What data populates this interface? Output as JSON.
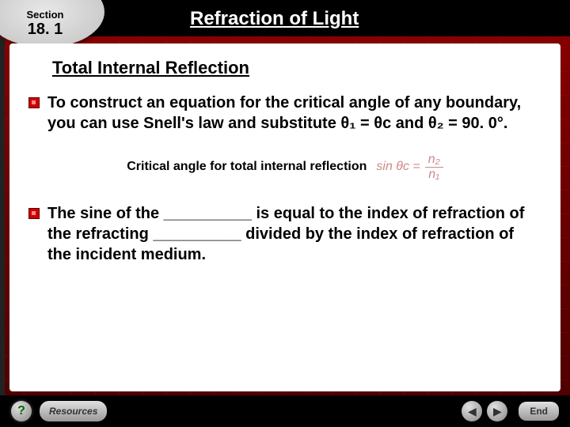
{
  "colors": {
    "slide_bg_top": "#8a0000",
    "slide_bg_bottom": "#4a0000",
    "header_bg": "#000000",
    "content_bg": "#ffffff",
    "bullet_color": "#d00000",
    "equation_faded": "#cc8888",
    "footer_bg": "#000000",
    "ellipse_bg": "#e0e0e0",
    "grid_line": "rgba(255,0,0,0.15)"
  },
  "typography": {
    "title_fontsize": 24,
    "subhead_fontsize": 22,
    "body_fontsize": 20,
    "eqlabel_fontsize": 16,
    "section_label_fontsize": 13,
    "section_number_fontsize": 20,
    "footer_fontsize": 12
  },
  "header": {
    "section_label": "Section",
    "section_number": "18. 1",
    "title": "Refraction of Light"
  },
  "content": {
    "subheading": "Total Internal Reflection",
    "bullet1": "To construct an equation for the critical angle of any boundary, you can use Snell's law and substitute θ₁ = θc and θ₂ = 90. 0°.",
    "equation_label": "Critical angle for total internal reflection",
    "equation_lhs": "sin θc =",
    "equation_num": "n₂",
    "equation_den": "n₁",
    "bullet2": "The sine of the __________ is equal to the index of refraction of the refracting __________ divided by the index of refraction of the incident medium."
  },
  "footer": {
    "help_label": "?",
    "resources_label": "Resources",
    "end_label": "End"
  }
}
